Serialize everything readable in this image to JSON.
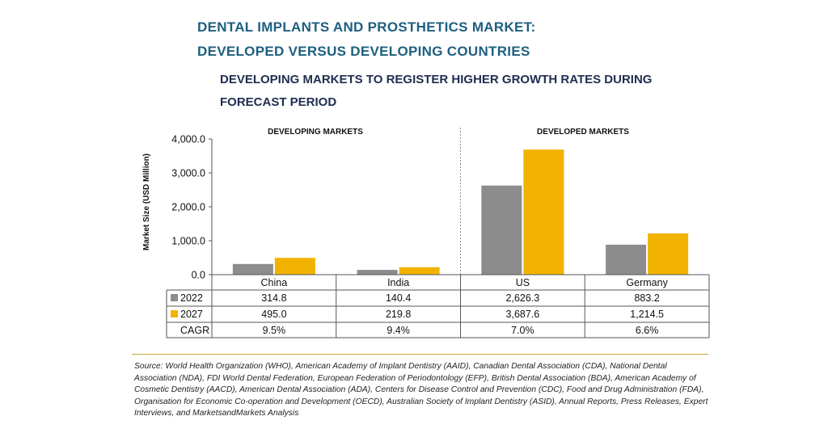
{
  "header": {
    "title_line1": "DENTAL IMPLANTS AND PROSTHETICS MARKET:",
    "title_line2": "DEVELOPED VERSUS DEVELOPING COUNTRIES",
    "subtitle_line1": "DEVELOPING MARKETS TO REGISTER HIGHER GROWTH RATES DURING",
    "subtitle_line2": "FORECAST PERIOD"
  },
  "chart_data": {
    "type": "bar",
    "group_labels": [
      "DEVELOPING MARKETS",
      "DEVELOPED MARKETS"
    ],
    "categories": [
      "China",
      "India",
      "US",
      "Germany"
    ],
    "series": [
      {
        "name": "2022",
        "values": [
          314.8,
          140.4,
          2626.3,
          883.2
        ],
        "display": [
          "314.8",
          "140.4",
          "2,626.3",
          "883.2"
        ],
        "color": "#8c8c8c"
      },
      {
        "name": "2027",
        "values": [
          495.0,
          219.8,
          3687.6,
          1214.5
        ],
        "display": [
          "495.0",
          "219.8",
          "3,687.6",
          "1,214.5"
        ],
        "color": "#f2b200"
      }
    ],
    "cagr": {
      "label": "CAGR",
      "values": [
        "9.5%",
        "9.4%",
        "7.0%",
        "6.6%"
      ]
    },
    "ylabel": "Market Size (USD Million)",
    "ylim": [
      0,
      4000
    ],
    "yticks": [
      0,
      1000,
      2000,
      3000,
      4000
    ],
    "ytick_labels": [
      "0.0",
      "1,000.0",
      "2,000.0",
      "3,000.0",
      "4,000.0"
    ],
    "grid": false,
    "legend": "in data table"
  },
  "source": "Source: World Health Organization (WHO), American Academy of Implant Dentistry (AAID), Canadian Dental Association (CDA), National Dental Association (NDA), FDI World Dental Federation, European Federation of Periodontology (EFP), British Dental Association (BDA), American Academy of Cosmetic Dentistry (AACD), American Dental Association (ADA), Centers for Disease Control and Prevention (CDC), Food and Drug Administration (FDA), Organisation for Economic Co-operation and Development (OECD), Australian Society of Implant Dentistry (ASID), Annual Reports, Press Releases, Expert Interviews, and MarketsandMarkets Analysis"
}
